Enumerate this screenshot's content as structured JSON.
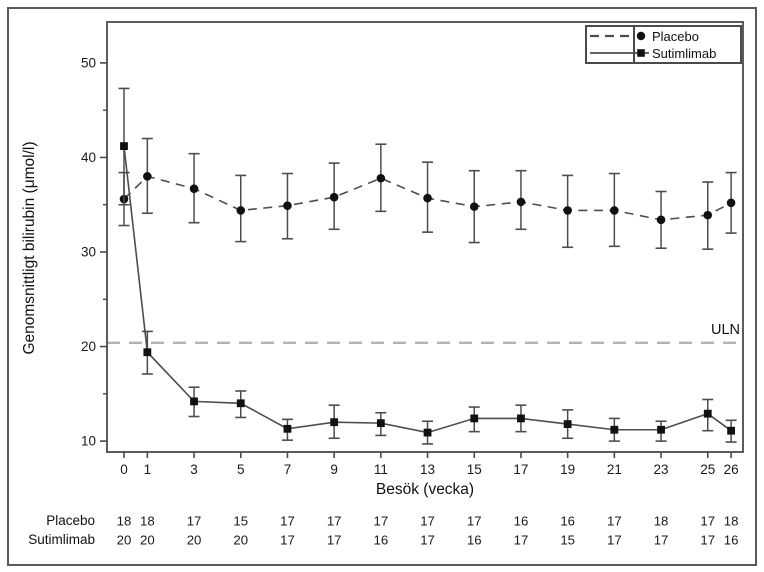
{
  "chart_data": {
    "type": "line",
    "title": "",
    "xlabel": "Besök (vecka)",
    "ylabel": "Genomsnittligt bilirubin (μmol/l)",
    "x_values_weeks": [
      0,
      1,
      3,
      5,
      7,
      9,
      11,
      13,
      15,
      17,
      19,
      21,
      23,
      25,
      26
    ],
    "x_tick_labels": [
      "0",
      "1",
      "3",
      "5",
      "7",
      "9",
      "11",
      "13",
      "15",
      "17",
      "19",
      "21",
      "23",
      "25",
      "26"
    ],
    "yticks": [
      10,
      20,
      30,
      40,
      50
    ],
    "yticks_minor": [
      15,
      25,
      35,
      45
    ],
    "ylim": [
      8.8,
      54.3
    ],
    "grid": false,
    "legend_position": "top-right",
    "uln_reference_line": {
      "label": "ULN",
      "value": 20.4
    },
    "series": [
      {
        "name": "Placebo",
        "line_style": "dashed",
        "marker": "circle",
        "values": [
          35.6,
          38.0,
          36.7,
          34.4,
          34.9,
          35.8,
          37.8,
          35.7,
          34.8,
          35.3,
          34.4,
          34.4,
          33.4,
          33.9,
          35.2
        ],
        "ci_upper": [
          38.4,
          42.0,
          40.4,
          38.1,
          38.3,
          39.4,
          41.4,
          39.5,
          38.6,
          38.6,
          38.1,
          38.3,
          36.4,
          37.4,
          38.4
        ],
        "ci_lower": [
          32.8,
          34.1,
          33.1,
          31.1,
          31.4,
          32.4,
          34.3,
          32.1,
          31.0,
          32.4,
          30.5,
          30.6,
          30.4,
          30.3,
          32.0
        ]
      },
      {
        "name": "Sutimlimab",
        "line_style": "solid",
        "marker": "square",
        "values": [
          41.2,
          19.4,
          14.2,
          14.0,
          11.3,
          12.0,
          11.9,
          10.9,
          12.4,
          12.4,
          11.8,
          11.2,
          11.2,
          12.9,
          11.1
        ],
        "ci_upper": [
          47.3,
          21.6,
          15.7,
          15.3,
          12.3,
          13.8,
          13.0,
          12.1,
          13.6,
          13.8,
          13.3,
          12.4,
          12.1,
          14.4,
          12.2
        ],
        "ci_lower": [
          35.0,
          17.1,
          12.6,
          12.5,
          10.1,
          10.3,
          10.6,
          9.7,
          11.0,
          11.0,
          10.3,
          10.0,
          10.0,
          11.1,
          9.9
        ]
      }
    ],
    "counts_table": {
      "rows": [
        {
          "label": "Placebo",
          "values": [
            18,
            18,
            17,
            15,
            17,
            17,
            17,
            17,
            17,
            16,
            16,
            17,
            18,
            17,
            18
          ]
        },
        {
          "label": "Sutimlimab",
          "values": [
            20,
            20,
            20,
            20,
            17,
            17,
            16,
            17,
            16,
            17,
            15,
            17,
            17,
            17,
            16
          ]
        }
      ]
    },
    "colors": {
      "series_line": "#4d4d4d",
      "marker": "#111111",
      "uln_line": "#b3b3b3",
      "frame": "#4a4a4a",
      "text": "#1a1a1a"
    }
  }
}
